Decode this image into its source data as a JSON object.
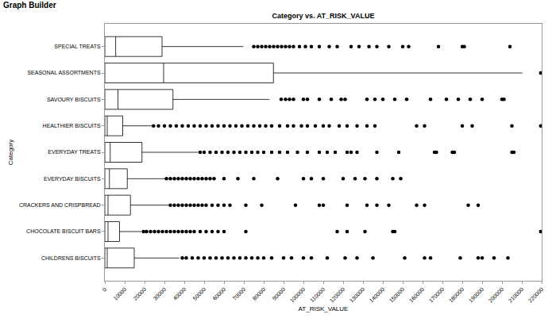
{
  "header": {
    "title": "Graph Builder"
  },
  "chart_data": {
    "type": "box",
    "orientation": "horizontal",
    "title": "Category vs. AT_RISK_VALUE",
    "x_label": "AT_RISK_VALUE",
    "y_label": "Category",
    "color": "#000000",
    "grid": false,
    "categories": [
      "SPECIAL TREATS",
      "SEASONAL ASSORTMENTS",
      "SAVOURY BISCUITS",
      "HEALTHIER BISCUITS",
      "EVERYDAY TREATS",
      "EVERYDAY BISCUITS",
      "CRACKERS AND CRISPBREAD",
      "CHOCOLATE BISCUIT BARS",
      "CHILDRENS BISCUITS"
    ],
    "boxes": [
      {
        "min": 0,
        "q1": 0,
        "median": 5450,
        "q3": 28800,
        "max": 69700,
        "outliers": [
          75000,
          77000,
          79000,
          81000,
          83000,
          85000,
          87000,
          89000,
          91000,
          93000,
          95000,
          98000,
          101000,
          104000,
          108000,
          113000,
          117000,
          124000,
          128000,
          133000,
          137000,
          143000,
          150000,
          153000,
          168000,
          180000,
          181000,
          204000
        ]
      },
      {
        "min": 0,
        "q1": 0,
        "median": 29600,
        "q3": 84900,
        "max": 210300,
        "outliers": [
          219500
        ]
      },
      {
        "min": 0,
        "q1": 0,
        "median": 6600,
        "q3": 34300,
        "max": 82900,
        "outliers": [
          88800,
          91000,
          93000,
          95000,
          100000,
          102000,
          108000,
          114000,
          119000,
          121000,
          132000,
          136000,
          140000,
          146000,
          152000,
          164000,
          172000,
          178000,
          184000,
          190000,
          200000,
          201000
        ]
      },
      {
        "min": 0,
        "q1": 0,
        "median": 1200,
        "q3": 9000,
        "max": 23800,
        "outliers": [
          24500,
          27000,
          30000,
          33000,
          36000,
          39000,
          42000,
          45000,
          48000,
          51000,
          54000,
          57000,
          60000,
          63000,
          66000,
          69000,
          72000,
          75000,
          78000,
          81000,
          84000,
          88000,
          92000,
          95000,
          99000,
          102000,
          106000,
          110000,
          113000,
          118000,
          122000,
          127000,
          132000,
          136000,
          157000,
          161000,
          180000,
          185000,
          205000,
          219500
        ]
      },
      {
        "min": 0,
        "q1": 0,
        "median": 2700,
        "q3": 18700,
        "max": 47100,
        "outliers": [
          48000,
          50000,
          53000,
          56000,
          59000,
          62000,
          65000,
          68000,
          71000,
          74000,
          77000,
          80000,
          84000,
          88000,
          92000,
          97000,
          102000,
          108000,
          112000,
          116000,
          122000,
          124000,
          127000,
          137000,
          148000,
          166000,
          167000,
          175000,
          176000,
          205000,
          206000
        ]
      },
      {
        "min": 0,
        "q1": 0,
        "median": 2300,
        "q3": 11300,
        "max": 30400,
        "outliers": [
          31000,
          33000,
          35000,
          37000,
          39000,
          41000,
          43000,
          45000,
          47000,
          49000,
          51000,
          53000,
          55000,
          60000,
          67000,
          75000,
          87000,
          100000,
          104000,
          110000,
          120000,
          126000,
          131000,
          137000,
          145000,
          149000
        ]
      },
      {
        "min": 0,
        "q1": 0,
        "median": 1600,
        "q3": 12900,
        "max": 32300,
        "outliers": [
          33000,
          35000,
          37000,
          39000,
          41000,
          43000,
          45000,
          47000,
          49000,
          51000,
          54000,
          57000,
          60000,
          63000,
          71000,
          79000,
          96000,
          108000,
          110000,
          122000,
          132000,
          137000,
          143000,
          157000,
          161000,
          183000,
          188000
        ]
      },
      {
        "min": 0,
        "q1": 0,
        "median": 1600,
        "q3": 7400,
        "max": 18700,
        "outliers": [
          19500,
          21000,
          23000,
          25000,
          27000,
          29000,
          31000,
          33000,
          35000,
          37000,
          39000,
          41000,
          43000,
          45000,
          48000,
          51000,
          54000,
          57000,
          60000,
          71000,
          117000,
          122000,
          131000,
          145000,
          146000,
          219500
        ]
      },
      {
        "min": 0,
        "q1": 0,
        "median": 1200,
        "q3": 14800,
        "max": 37400,
        "outliers": [
          39000,
          41000,
          44000,
          47000,
          50000,
          53000,
          56000,
          59000,
          62000,
          65000,
          68000,
          71000,
          74000,
          77000,
          80000,
          84000,
          90000,
          94000,
          100000,
          104000,
          112000,
          121000,
          127000,
          135000,
          151000,
          161000,
          164000,
          179000,
          188000,
          190000,
          196000,
          203000
        ]
      }
    ],
    "xlim": [
      0,
      220000
    ],
    "xticks": [
      0,
      10000,
      20000,
      30000,
      40000,
      50000,
      60000,
      70000,
      80000,
      90000,
      100000,
      110000,
      120000,
      130000,
      140000,
      150000,
      160000,
      170000,
      180000,
      190000,
      200000,
      210000,
      220000
    ]
  }
}
